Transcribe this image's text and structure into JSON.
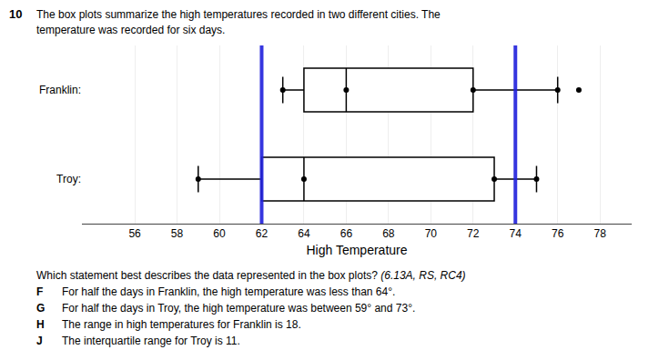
{
  "chart_data": {
    "type": "box",
    "title": "10",
    "subtitle": [
      "The box plots summarize the high temperatures recorded in two different cities. The",
      "temperature was recorded for six days."
    ],
    "xlabel": "High Temperature",
    "categories": [
      "Franklin:",
      "Troy:"
    ],
    "boxes": [
      {
        "whisker_low": 63,
        "q1": 64,
        "median": 66,
        "q3": 72,
        "whisker_high": 76,
        "dots": [
          63,
          66,
          72,
          76,
          77
        ]
      },
      {
        "whisker_low": 59,
        "q1": 62,
        "median": 64,
        "q3": 73,
        "whisker_high": 75,
        "dots": [
          59,
          64,
          73,
          75
        ]
      }
    ],
    "highlights": {
      "values": [
        62,
        74
      ],
      "color": "#2222dd"
    },
    "xlim": [
      53.5,
      79.5
    ],
    "xticks": [
      56,
      58,
      60,
      62,
      64,
      66,
      68,
      70,
      72,
      74,
      76,
      78
    ],
    "grid": true,
    "annotations": [
      [
        "Which statement best describes the data represented in the box plots?",
        " (6.13A, RS, RC4)"
      ],
      [
        "F",
        "For half the days in Franklin, the high temperature was less than 64°."
      ],
      [
        "G",
        "For half the days in Troy, the high temperature was between 59° and 73°."
      ],
      [
        "H",
        "The range in high temperatures for Franklin is 18."
      ],
      [
        "J",
        "The interquartile range for Troy is 11."
      ]
    ]
  }
}
